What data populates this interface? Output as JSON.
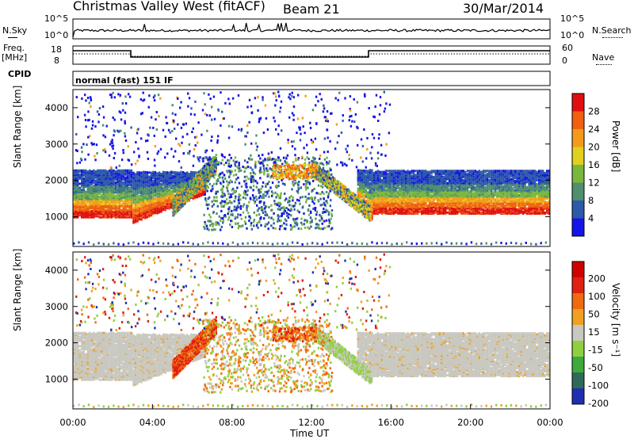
{
  "header": {
    "station": "Christmas Valley West (fitACF)",
    "beam": "Beam 21",
    "date": "30/Mar/2014"
  },
  "noise_panel": {
    "left_label": "N.Sky",
    "right_label": "N.Search",
    "ticks": [
      "10^5",
      "10^0"
    ],
    "right_ticks": [
      "10^5",
      "10^0"
    ]
  },
  "freq_panel": {
    "left_label_line1": "Freq.",
    "left_label_line2": "[MHz]",
    "left_ticks": [
      "18",
      "8"
    ],
    "right_label": "Nave",
    "right_ticks": [
      "60",
      "0"
    ]
  },
  "cpid": {
    "label": "CPID",
    "mode": "normal (fast) 151 IF"
  },
  "chart_data": [
    {
      "type": "heatmap",
      "name": "power",
      "ylabel": "Slant Range [km]",
      "ylim": [
        180,
        4500
      ],
      "yticks": [
        "1000",
        "2000",
        "3000",
        "4000"
      ],
      "colorbar": {
        "label": "Power [dB]",
        "ticks": [
          "4",
          "8",
          "12",
          "16",
          "20",
          "24",
          "28"
        ],
        "colors": [
          "#1414e6",
          "#2d5aa8",
          "#4f8f6e",
          "#7ab83c",
          "#e0d020",
          "#f59a18",
          "#f06010",
          "#e01010"
        ]
      }
    },
    {
      "type": "heatmap",
      "name": "velocity",
      "ylabel": "Slant Range [km]",
      "ylim": [
        180,
        4500
      ],
      "yticks": [
        "1000",
        "2000",
        "3000",
        "4000"
      ],
      "colorbar": {
        "label": "Velocity [m s⁻¹]",
        "ticks": [
          "200",
          "100",
          "50",
          "15",
          "-15",
          "-50",
          "-100",
          "-200"
        ],
        "colors": [
          "#1f2fb0",
          "#2e6a58",
          "#3faa3c",
          "#90d040",
          "#c8c8c0",
          "#f0a020",
          "#f06a10",
          "#e02010",
          "#d00000"
        ]
      }
    }
  ],
  "xaxis": {
    "ticks": [
      "00:00",
      "04:00",
      "08:00",
      "12:00",
      "16:00",
      "20:00",
      "00:00"
    ],
    "label": "Time UT"
  }
}
